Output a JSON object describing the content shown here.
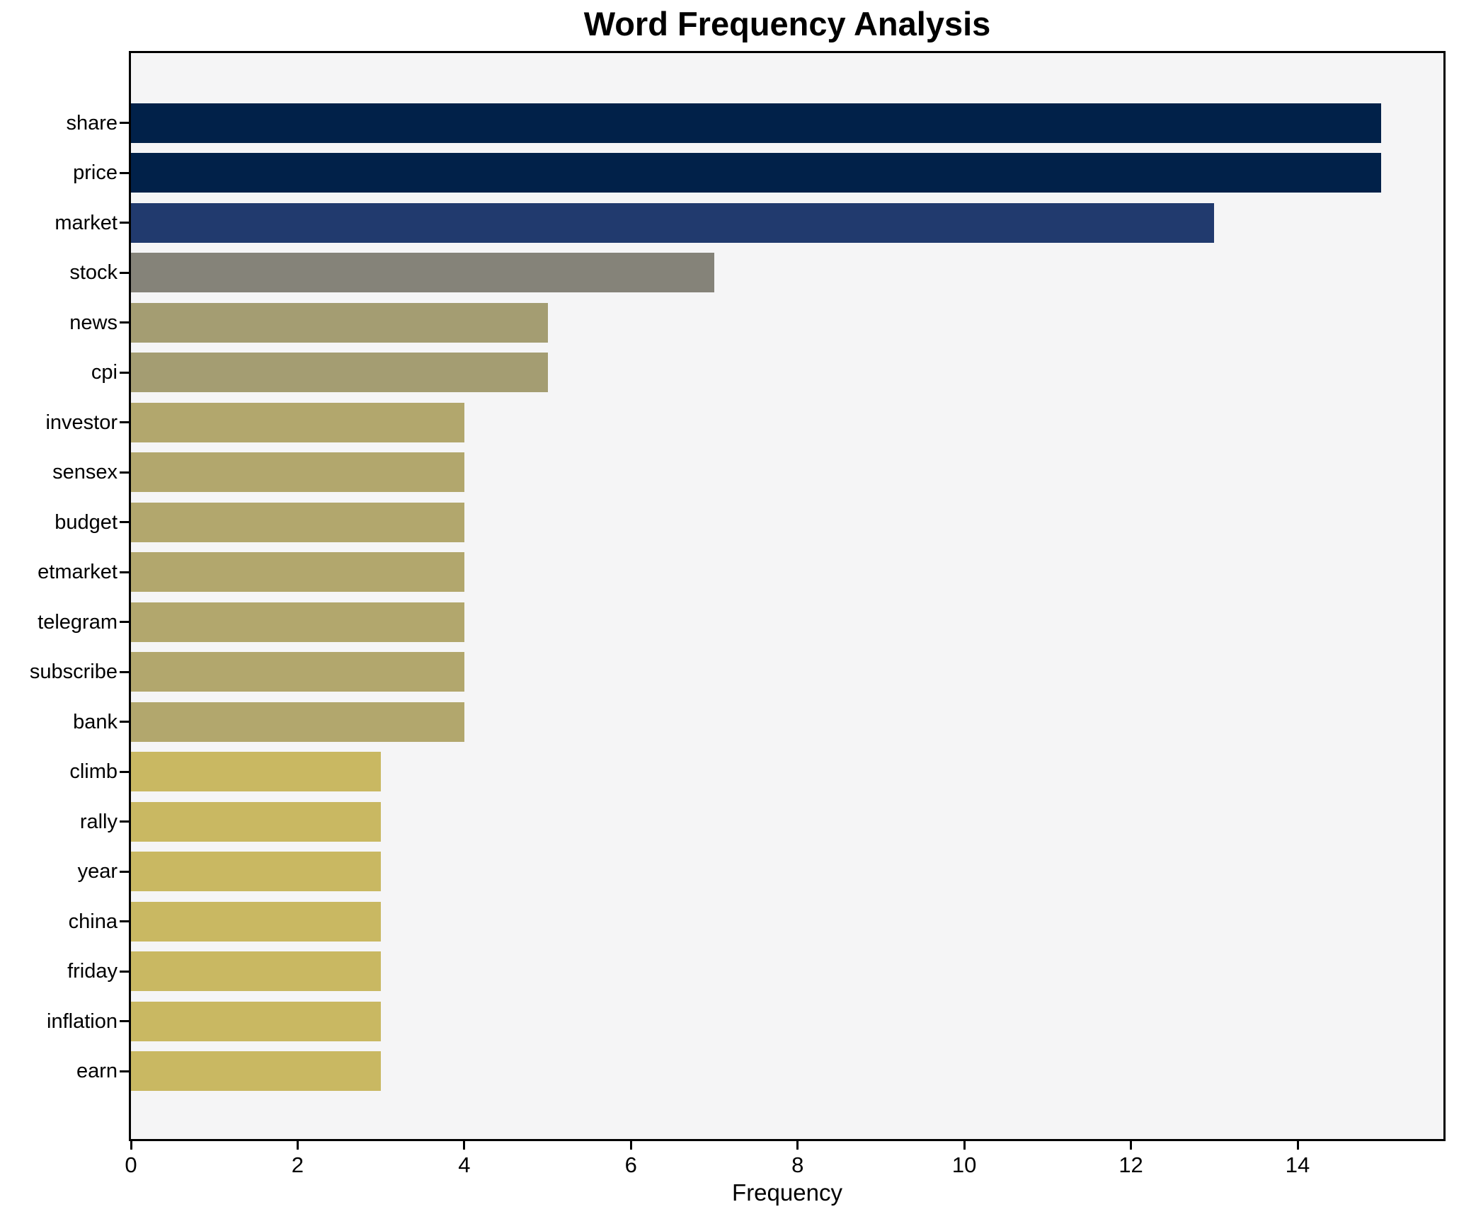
{
  "chart_data": {
    "type": "bar",
    "orientation": "horizontal",
    "title": "Word Frequency Analysis",
    "xlabel": "Frequency",
    "ylabel": "",
    "categories": [
      "share",
      "price",
      "market",
      "stock",
      "news",
      "cpi",
      "investor",
      "sensex",
      "budget",
      "etmarket",
      "telegram",
      "subscribe",
      "bank",
      "climb",
      "rally",
      "year",
      "china",
      "friday",
      "inflation",
      "earn"
    ],
    "values": [
      15,
      15,
      13,
      7,
      5,
      5,
      4,
      4,
      4,
      4,
      4,
      4,
      4,
      3,
      3,
      3,
      3,
      3,
      3,
      3
    ],
    "bar_colors": [
      "#012149",
      "#012149",
      "#213a6e",
      "#858379",
      "#a49d72",
      "#a49d72",
      "#b2a76d",
      "#b2a76d",
      "#b2a76d",
      "#b2a76d",
      "#b2a76d",
      "#b2a76d",
      "#b2a76d",
      "#c9b862",
      "#c9b862",
      "#c9b862",
      "#c9b862",
      "#c9b862",
      "#c9b862",
      "#c9b862"
    ],
    "xlim": [
      0,
      15.75
    ],
    "xticks": [
      0,
      2,
      4,
      6,
      8,
      10,
      12,
      14
    ],
    "grid": false,
    "legend": null,
    "plot_background": "#f5f5f6",
    "spine_color": "#000000",
    "text_color": "#000000"
  }
}
